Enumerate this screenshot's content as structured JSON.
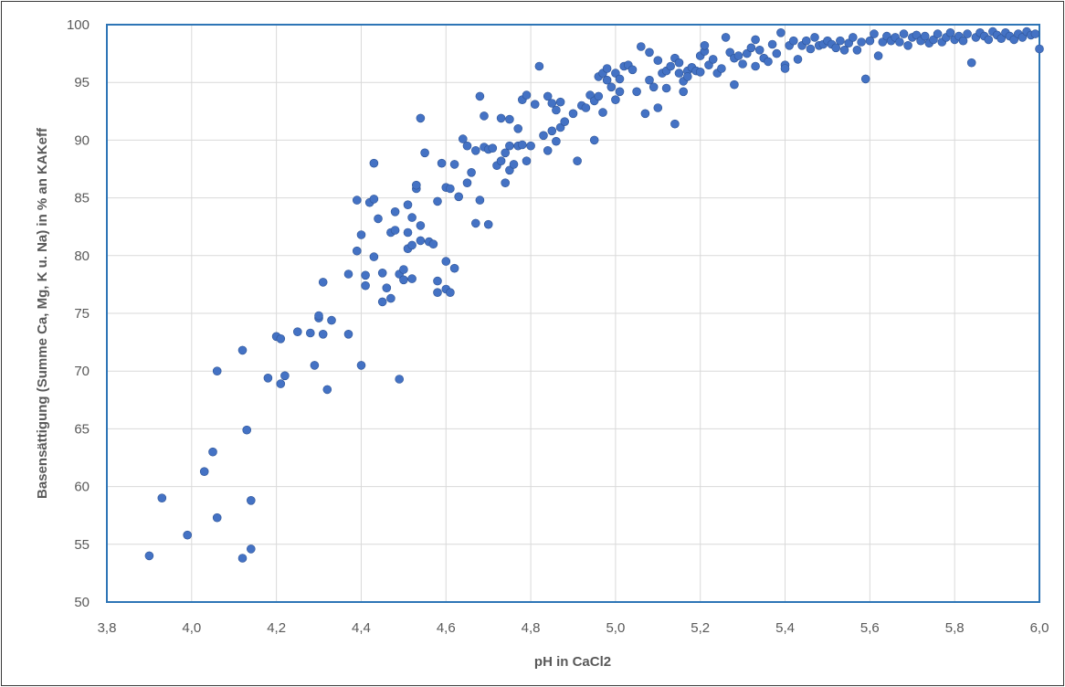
{
  "chart_data": {
    "type": "scatter",
    "xlabel": "pH in CaCl2",
    "ylabel": "Basensättigung  (Summe Ca, Mg, K u. Na) in % an KAKeff",
    "xlim": [
      3.8,
      6.0
    ],
    "ylim": [
      50,
      100
    ],
    "x_ticks": [
      "3,8",
      "4,0",
      "4,2",
      "4,4",
      "4,6",
      "4,8",
      "5,0",
      "5,2",
      "5,4",
      "5,6",
      "5,8",
      "6,0"
    ],
    "y_ticks": [
      "50",
      "55",
      "60",
      "65",
      "70",
      "75",
      "80",
      "85",
      "90",
      "95",
      "100"
    ],
    "grid": true,
    "legend": "none",
    "colors": {
      "marker": "#4472c4",
      "plot_border": "#2e75b6",
      "grid": "#d9d9d9"
    },
    "series": [
      {
        "points": [
          [
            3.9,
            54.0
          ],
          [
            3.93,
            59.0
          ],
          [
            3.99,
            55.8
          ],
          [
            4.03,
            61.3
          ],
          [
            4.05,
            63.0
          ],
          [
            4.06,
            57.3
          ],
          [
            4.06,
            70.0
          ],
          [
            4.12,
            53.8
          ],
          [
            4.12,
            71.8
          ],
          [
            4.13,
            64.9
          ],
          [
            4.14,
            58.8
          ],
          [
            4.14,
            54.6
          ],
          [
            4.18,
            69.4
          ],
          [
            4.2,
            73.0
          ],
          [
            4.21,
            72.8
          ],
          [
            4.21,
            68.9
          ],
          [
            4.22,
            69.6
          ],
          [
            4.25,
            73.4
          ],
          [
            4.28,
            73.3
          ],
          [
            4.29,
            70.5
          ],
          [
            4.3,
            74.6
          ],
          [
            4.3,
            74.8
          ],
          [
            4.31,
            73.2
          ],
          [
            4.31,
            77.7
          ],
          [
            4.32,
            68.4
          ],
          [
            4.33,
            74.4
          ],
          [
            4.37,
            73.2
          ],
          [
            4.37,
            78.4
          ],
          [
            4.39,
            80.4
          ],
          [
            4.39,
            84.8
          ],
          [
            4.4,
            70.5
          ],
          [
            4.4,
            81.8
          ],
          [
            4.41,
            77.4
          ],
          [
            4.41,
            78.3
          ],
          [
            4.42,
            84.6
          ],
          [
            4.43,
            84.9
          ],
          [
            4.43,
            88.0
          ],
          [
            4.43,
            79.9
          ],
          [
            4.44,
            83.2
          ],
          [
            4.45,
            78.5
          ],
          [
            4.45,
            76.0
          ],
          [
            4.46,
            77.2
          ],
          [
            4.47,
            76.3
          ],
          [
            4.47,
            82.0
          ],
          [
            4.48,
            83.8
          ],
          [
            4.48,
            82.2
          ],
          [
            4.49,
            69.3
          ],
          [
            4.49,
            78.4
          ],
          [
            4.5,
            78.8
          ],
          [
            4.5,
            77.9
          ],
          [
            4.51,
            82.0
          ],
          [
            4.51,
            84.4
          ],
          [
            4.51,
            80.6
          ],
          [
            4.52,
            78.0
          ],
          [
            4.52,
            83.3
          ],
          [
            4.52,
            80.9
          ],
          [
            4.53,
            85.8
          ],
          [
            4.53,
            86.1
          ],
          [
            4.54,
            82.6
          ],
          [
            4.54,
            81.3
          ],
          [
            4.54,
            91.9
          ],
          [
            4.55,
            88.9
          ],
          [
            4.56,
            81.2
          ],
          [
            4.57,
            81.0
          ],
          [
            4.58,
            76.8
          ],
          [
            4.58,
            77.8
          ],
          [
            4.58,
            84.7
          ],
          [
            4.59,
            88.0
          ],
          [
            4.6,
            79.5
          ],
          [
            4.6,
            77.1
          ],
          [
            4.6,
            85.9
          ],
          [
            4.61,
            76.8
          ],
          [
            4.61,
            85.8
          ],
          [
            4.62,
            87.9
          ],
          [
            4.62,
            78.9
          ],
          [
            4.63,
            85.1
          ],
          [
            4.64,
            90.1
          ],
          [
            4.65,
            89.5
          ],
          [
            4.65,
            86.3
          ],
          [
            4.66,
            87.2
          ],
          [
            4.67,
            82.8
          ],
          [
            4.67,
            89.1
          ],
          [
            4.68,
            93.8
          ],
          [
            4.68,
            84.8
          ],
          [
            4.69,
            92.1
          ],
          [
            4.69,
            89.4
          ],
          [
            4.7,
            89.2
          ],
          [
            4.7,
            82.7
          ],
          [
            4.71,
            89.3
          ],
          [
            4.72,
            87.8
          ],
          [
            4.73,
            91.9
          ],
          [
            4.73,
            88.2
          ],
          [
            4.74,
            88.9
          ],
          [
            4.74,
            86.3
          ],
          [
            4.75,
            91.8
          ],
          [
            4.75,
            89.5
          ],
          [
            4.75,
            87.4
          ],
          [
            4.76,
            87.9
          ],
          [
            4.77,
            89.5
          ],
          [
            4.77,
            91.0
          ],
          [
            4.78,
            89.6
          ],
          [
            4.78,
            93.5
          ],
          [
            4.79,
            93.9
          ],
          [
            4.79,
            88.2
          ],
          [
            4.8,
            89.5
          ],
          [
            4.81,
            93.1
          ],
          [
            4.82,
            96.4
          ],
          [
            4.83,
            90.4
          ],
          [
            4.84,
            93.8
          ],
          [
            4.84,
            89.1
          ],
          [
            4.85,
            93.2
          ],
          [
            4.85,
            90.8
          ],
          [
            4.86,
            92.6
          ],
          [
            4.86,
            89.9
          ],
          [
            4.87,
            91.1
          ],
          [
            4.87,
            93.3
          ],
          [
            4.88,
            91.6
          ],
          [
            4.9,
            92.3
          ],
          [
            4.91,
            88.2
          ],
          [
            4.92,
            93.0
          ],
          [
            4.93,
            92.8
          ],
          [
            4.94,
            93.9
          ],
          [
            4.95,
            93.4
          ],
          [
            4.95,
            90.0
          ],
          [
            4.96,
            95.5
          ],
          [
            4.96,
            93.8
          ],
          [
            4.97,
            95.8
          ],
          [
            4.97,
            92.4
          ],
          [
            4.98,
            96.2
          ],
          [
            4.98,
            95.2
          ],
          [
            4.99,
            94.6
          ],
          [
            5.0,
            93.5
          ],
          [
            5.0,
            95.8
          ],
          [
            5.01,
            95.3
          ],
          [
            5.01,
            94.2
          ],
          [
            5.02,
            96.4
          ],
          [
            5.03,
            96.5
          ],
          [
            5.04,
            96.1
          ],
          [
            5.05,
            94.2
          ],
          [
            5.06,
            98.1
          ],
          [
            5.07,
            92.3
          ],
          [
            5.08,
            97.6
          ],
          [
            5.08,
            95.2
          ],
          [
            5.09,
            94.6
          ],
          [
            5.1,
            96.9
          ],
          [
            5.1,
            92.8
          ],
          [
            5.11,
            95.8
          ],
          [
            5.12,
            94.5
          ],
          [
            5.12,
            96.0
          ],
          [
            5.13,
            96.4
          ],
          [
            5.14,
            91.4
          ],
          [
            5.14,
            97.1
          ],
          [
            5.15,
            95.8
          ],
          [
            5.15,
            96.7
          ],
          [
            5.16,
            95.1
          ],
          [
            5.16,
            94.2
          ],
          [
            5.17,
            96.0
          ],
          [
            5.17,
            95.5
          ],
          [
            5.18,
            96.3
          ],
          [
            5.19,
            96.0
          ],
          [
            5.2,
            97.3
          ],
          [
            5.2,
            95.9
          ],
          [
            5.21,
            97.7
          ],
          [
            5.21,
            98.2
          ],
          [
            5.22,
            96.5
          ],
          [
            5.23,
            97.0
          ],
          [
            5.24,
            95.8
          ],
          [
            5.25,
            96.2
          ],
          [
            5.26,
            98.9
          ],
          [
            5.27,
            97.6
          ],
          [
            5.28,
            97.1
          ],
          [
            5.28,
            94.8
          ],
          [
            5.29,
            97.3
          ],
          [
            5.3,
            96.6
          ],
          [
            5.31,
            97.5
          ],
          [
            5.32,
            98.0
          ],
          [
            5.33,
            96.4
          ],
          [
            5.33,
            98.7
          ],
          [
            5.34,
            97.8
          ],
          [
            5.35,
            97.1
          ],
          [
            5.36,
            96.8
          ],
          [
            5.37,
            98.3
          ],
          [
            5.38,
            97.5
          ],
          [
            5.39,
            99.3
          ],
          [
            5.4,
            96.5
          ],
          [
            5.4,
            96.2
          ],
          [
            5.41,
            98.2
          ],
          [
            5.42,
            98.6
          ],
          [
            5.43,
            97.0
          ],
          [
            5.44,
            98.2
          ],
          [
            5.45,
            98.6
          ],
          [
            5.46,
            97.9
          ],
          [
            5.47,
            98.9
          ],
          [
            5.48,
            98.2
          ],
          [
            5.49,
            98.3
          ],
          [
            5.5,
            98.6
          ],
          [
            5.51,
            98.3
          ],
          [
            5.52,
            98.0
          ],
          [
            5.53,
            98.6
          ],
          [
            5.54,
            97.8
          ],
          [
            5.55,
            98.4
          ],
          [
            5.56,
            98.9
          ],
          [
            5.57,
            97.8
          ],
          [
            5.58,
            98.5
          ],
          [
            5.59,
            95.3
          ],
          [
            5.6,
            98.6
          ],
          [
            5.61,
            99.2
          ],
          [
            5.62,
            97.3
          ],
          [
            5.63,
            98.5
          ],
          [
            5.64,
            99.0
          ],
          [
            5.65,
            98.6
          ],
          [
            5.66,
            98.9
          ],
          [
            5.67,
            98.5
          ],
          [
            5.68,
            99.2
          ],
          [
            5.69,
            98.2
          ],
          [
            5.7,
            98.9
          ],
          [
            5.71,
            99.1
          ],
          [
            5.72,
            98.6
          ],
          [
            5.73,
            99.0
          ],
          [
            5.74,
            98.4
          ],
          [
            5.75,
            98.7
          ],
          [
            5.76,
            99.2
          ],
          [
            5.77,
            98.5
          ],
          [
            5.78,
            98.9
          ],
          [
            5.79,
            99.3
          ],
          [
            5.8,
            98.7
          ],
          [
            5.81,
            99.0
          ],
          [
            5.82,
            98.6
          ],
          [
            5.83,
            99.2
          ],
          [
            5.84,
            96.7
          ],
          [
            5.85,
            98.9
          ],
          [
            5.86,
            99.3
          ],
          [
            5.87,
            99.0
          ],
          [
            5.88,
            98.7
          ],
          [
            5.89,
            99.4
          ],
          [
            5.9,
            99.1
          ],
          [
            5.91,
            98.8
          ],
          [
            5.92,
            99.3
          ],
          [
            5.93,
            99.0
          ],
          [
            5.94,
            98.7
          ],
          [
            5.95,
            99.2
          ],
          [
            5.96,
            98.9
          ],
          [
            5.97,
            99.4
          ],
          [
            5.98,
            99.1
          ],
          [
            5.99,
            99.2
          ],
          [
            6.0,
            97.9
          ]
        ]
      }
    ]
  }
}
